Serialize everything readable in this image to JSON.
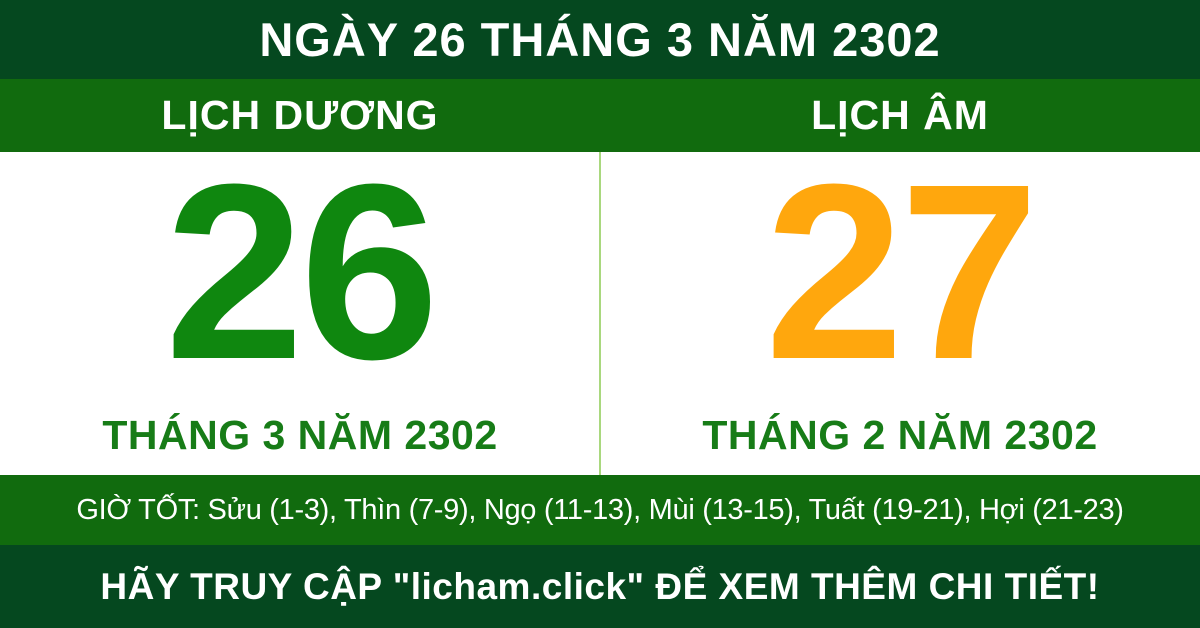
{
  "colors": {
    "dark_green": "#05481f",
    "green": "#116b0e",
    "number_green": "#0f870f",
    "month_green": "#177c17",
    "number_orange": "#ffa70d",
    "divider": "#a9d87e"
  },
  "header": {
    "title": "NGÀY 26 THÁNG 3 NĂM 2302"
  },
  "columns": {
    "solar": {
      "label": "LỊCH DƯƠNG",
      "day": "26",
      "month_year": "THÁNG 3 NĂM 2302"
    },
    "lunar": {
      "label": "LỊCH ÂM",
      "day": "27",
      "month_year": "THÁNG 2 NĂM 2302"
    }
  },
  "good_hours": {
    "text": "GIỜ TỐT: Sửu (1-3), Thìn (7-9), Ngọ (11-13), Mùi (13-15), Tuất (19-21), Hợi (21-23)"
  },
  "footer": {
    "text": "HÃY TRUY CẬP \"licham.click\" ĐỂ XEM THÊM CHI TIẾT!"
  }
}
